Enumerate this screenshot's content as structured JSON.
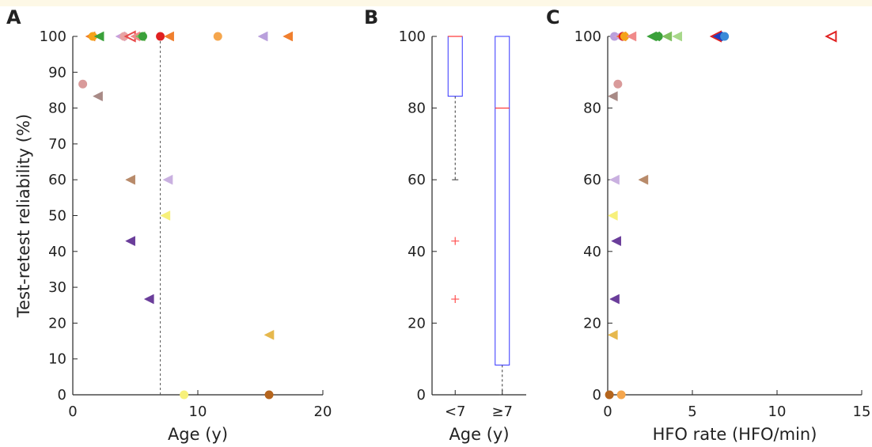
{
  "chart_data": [
    {
      "panel": "A",
      "type": "scatter",
      "xlabel": "Age (y)",
      "ylabel": "Test-retest reliability (%)",
      "xlim": [
        0,
        20
      ],
      "ylim": [
        0,
        100
      ],
      "xticks": [
        0,
        10,
        20
      ],
      "yticks": [
        0,
        10,
        20,
        30,
        40,
        50,
        60,
        70,
        80,
        90,
        100
      ],
      "reference_line_x": 7,
      "points": [
        {
          "x": 1.4,
          "y": 100,
          "color": "#f07f2e",
          "marker": "triangle-left"
        },
        {
          "x": 1.6,
          "y": 100,
          "color": "#f5a31a",
          "marker": "circle"
        },
        {
          "x": 2.1,
          "y": 100,
          "color": "#3aa13a",
          "marker": "triangle-left"
        },
        {
          "x": 3.8,
          "y": 100,
          "color": "#c9a0dc",
          "marker": "triangle-left"
        },
        {
          "x": 4.1,
          "y": 100,
          "color": "#e8a3a3",
          "marker": "circle"
        },
        {
          "x": 4.6,
          "y": 100,
          "color": "#e84a4a",
          "marker": "triangle-left-open"
        },
        {
          "x": 5.0,
          "y": 100,
          "color": "#f08a8a",
          "marker": "triangle-left"
        },
        {
          "x": 5.4,
          "y": 100,
          "color": "#7fbf5f",
          "marker": "triangle-left"
        },
        {
          "x": 5.6,
          "y": 100,
          "color": "#3aa13a",
          "marker": "circle"
        },
        {
          "x": 7.0,
          "y": 100,
          "color": "#e02020",
          "marker": "circle"
        },
        {
          "x": 7.7,
          "y": 100,
          "color": "#f07f2e",
          "marker": "triangle-left"
        },
        {
          "x": 11.6,
          "y": 100,
          "color": "#f5a64d",
          "marker": "circle"
        },
        {
          "x": 15.2,
          "y": 100,
          "color": "#b9a0dc",
          "marker": "triangle-left"
        },
        {
          "x": 17.2,
          "y": 100,
          "color": "#f07f2e",
          "marker": "triangle-left"
        },
        {
          "x": 0.8,
          "y": 86.7,
          "color": "#d99a9a",
          "marker": "circle"
        },
        {
          "x": 2.0,
          "y": 83.3,
          "color": "#a88a86",
          "marker": "triangle-left"
        },
        {
          "x": 4.6,
          "y": 60,
          "color": "#b88a6a",
          "marker": "triangle-left"
        },
        {
          "x": 7.6,
          "y": 60,
          "color": "#c9b0e0",
          "marker": "triangle-left"
        },
        {
          "x": 7.4,
          "y": 50,
          "color": "#f7f07a",
          "marker": "triangle-left"
        },
        {
          "x": 4.6,
          "y": 42.9,
          "color": "#6a3d9a",
          "marker": "triangle-left"
        },
        {
          "x": 6.1,
          "y": 26.7,
          "color": "#6a3d9a",
          "marker": "triangle-left"
        },
        {
          "x": 15.7,
          "y": 16.7,
          "color": "#e6b84d",
          "marker": "triangle-left"
        },
        {
          "x": 8.9,
          "y": 0,
          "color": "#f7f07a",
          "marker": "circle"
        },
        {
          "x": 15.7,
          "y": 0,
          "color": "#b5651d",
          "marker": "circle"
        }
      ]
    },
    {
      "panel": "B",
      "type": "box",
      "xlabel": "Age (y)",
      "ylim": [
        0,
        100
      ],
      "yticks": [
        0,
        20,
        40,
        60,
        80,
        100
      ],
      "categories": [
        "<7",
        "≥7"
      ],
      "boxes": [
        {
          "q1": 83.3,
          "median": 100,
          "q3": 100,
          "whisker_low": 60,
          "whisker_high": 100,
          "outliers": [
            42.9,
            26.7
          ]
        },
        {
          "q1": 8.3,
          "median": 80,
          "q3": 100,
          "whisker_low": 0,
          "whisker_high": 100,
          "outliers": []
        }
      ]
    },
    {
      "panel": "C",
      "type": "scatter",
      "xlabel": "HFO rate (HFO/min)",
      "xlim": [
        0,
        15
      ],
      "ylim": [
        0,
        100
      ],
      "xticks": [
        0,
        5,
        10,
        15
      ],
      "yticks": [
        0,
        20,
        40,
        60,
        80,
        100
      ],
      "points": [
        {
          "x": 0.4,
          "y": 100,
          "color": "#b9a0dc",
          "marker": "circle"
        },
        {
          "x": 0.6,
          "y": 100,
          "color": "#c9a0dc",
          "marker": "triangle-left"
        },
        {
          "x": 0.8,
          "y": 100,
          "color": "#f07f2e",
          "marker": "triangle-left"
        },
        {
          "x": 0.9,
          "y": 100,
          "color": "#e02020",
          "marker": "circle"
        },
        {
          "x": 1.0,
          "y": 100,
          "color": "#f5a31a",
          "marker": "circle"
        },
        {
          "x": 1.4,
          "y": 100,
          "color": "#f08a8a",
          "marker": "triangle-left"
        },
        {
          "x": 2.6,
          "y": 100,
          "color": "#3aa13a",
          "marker": "triangle-left"
        },
        {
          "x": 2.8,
          "y": 100,
          "color": "#3aa13a",
          "marker": "triangle-left"
        },
        {
          "x": 3.0,
          "y": 100,
          "color": "#3aa13a",
          "marker": "circle"
        },
        {
          "x": 3.5,
          "y": 100,
          "color": "#7fbf5f",
          "marker": "triangle-left"
        },
        {
          "x": 4.1,
          "y": 100,
          "color": "#a8d88a",
          "marker": "triangle-left"
        },
        {
          "x": 6.4,
          "y": 100,
          "color": "#e02020",
          "marker": "triangle-left-open"
        },
        {
          "x": 6.5,
          "y": 100,
          "color": "#1f3fbf",
          "marker": "triangle-left"
        },
        {
          "x": 6.9,
          "y": 100,
          "color": "#3a8ad8",
          "marker": "circle"
        },
        {
          "x": 13.2,
          "y": 100,
          "color": "#e02020",
          "marker": "triangle-left-open"
        },
        {
          "x": 0.6,
          "y": 86.7,
          "color": "#d99a9a",
          "marker": "circle"
        },
        {
          "x": 0.3,
          "y": 83.3,
          "color": "#a88a86",
          "marker": "triangle-left"
        },
        {
          "x": 0.4,
          "y": 60,
          "color": "#c9b0e0",
          "marker": "triangle-left"
        },
        {
          "x": 2.1,
          "y": 60,
          "color": "#b88a6a",
          "marker": "triangle-left"
        },
        {
          "x": 0.3,
          "y": 50,
          "color": "#f7f07a",
          "marker": "triangle-left"
        },
        {
          "x": 0.5,
          "y": 42.9,
          "color": "#6a3d9a",
          "marker": "triangle-left"
        },
        {
          "x": 0.4,
          "y": 26.7,
          "color": "#6a3d9a",
          "marker": "triangle-left"
        },
        {
          "x": 0.3,
          "y": 16.7,
          "color": "#e6b84d",
          "marker": "triangle-left"
        },
        {
          "x": 0.1,
          "y": 0,
          "color": "#b5651d",
          "marker": "circle"
        },
        {
          "x": 0.8,
          "y": 0,
          "color": "#f5a64d",
          "marker": "circle"
        }
      ]
    }
  ]
}
